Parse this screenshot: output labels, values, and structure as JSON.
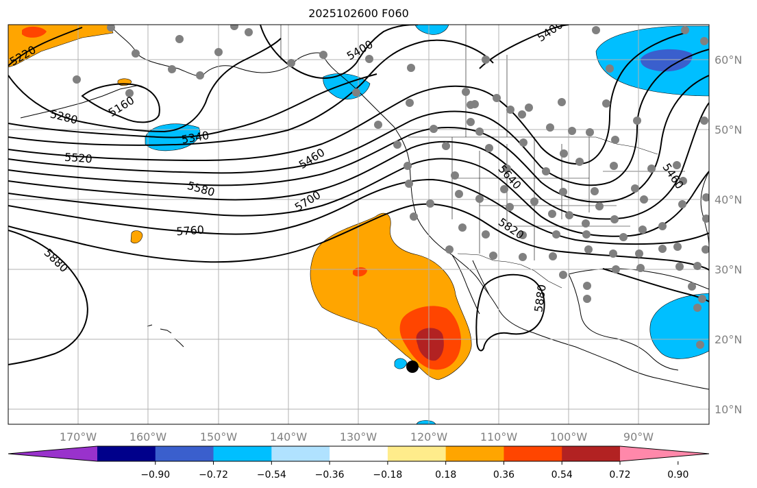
{
  "title": "2025102600 F060",
  "colors": {
    "land_outline": "#000000",
    "grid": "#b0b0b0",
    "contour": "#000000",
    "station": "#808080"
  },
  "axes": {
    "lon_labels": [
      "170°W",
      "160°W",
      "150°W",
      "140°W",
      "130°W",
      "120°W",
      "110°W",
      "100°W",
      "90°W"
    ],
    "lat_labels": [
      "60°N",
      "50°N",
      "40°N",
      "30°N",
      "20°N",
      "10°N"
    ]
  },
  "contour_labels": [
    "5220",
    "5160",
    "5280",
    "5340",
    "5400",
    "5460",
    "5460",
    "5520",
    "5580",
    "5640",
    "5700",
    "5760",
    "5820",
    "5880",
    "5880",
    "5400"
  ],
  "colorbar": {
    "ticks": [
      "−0.90",
      "−0.72",
      "−0.54",
      "−0.36",
      "−0.18",
      "0.18",
      "0.36",
      "0.54",
      "0.72",
      "0.90"
    ],
    "colors": [
      "#9932cc",
      "#00008b",
      "#3a5fcd",
      "#00bfff",
      "#b0e2ff",
      "#ffffff",
      "#ffec8b",
      "#ffa500",
      "#ff4500",
      "#b22222",
      "#ff88aa"
    ]
  }
}
